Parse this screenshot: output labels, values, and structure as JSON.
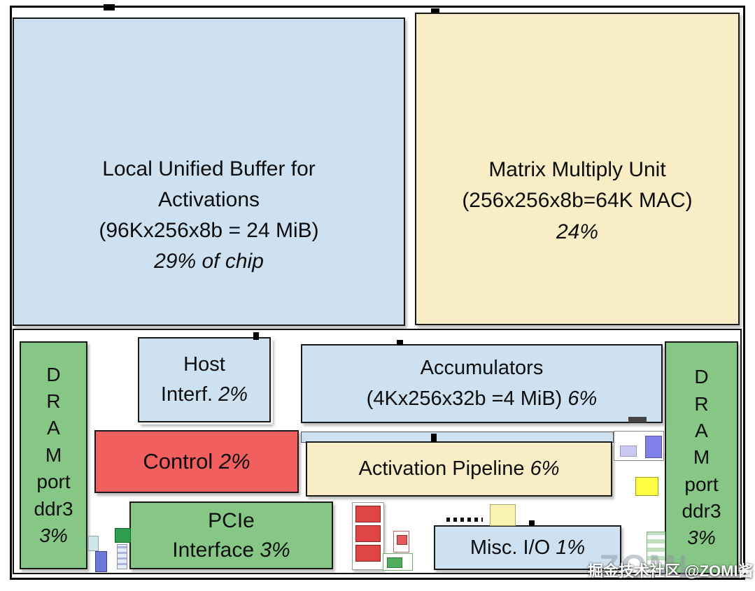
{
  "colors": {
    "light_blue": "#cde1f0",
    "cream": "#f8edc4",
    "green": "#86c786",
    "red": "#f15f5f",
    "border": "#1a1a1a",
    "background": "#ffffff"
  },
  "blocks": {
    "unified_buffer": {
      "line1": "Local Unified Buffer for",
      "line2": "Activations",
      "line3": "(96Kx256x8b = 24 MiB)",
      "pct": "29% of chip",
      "color": "#cde1f0"
    },
    "matrix_multiply": {
      "line1": "Matrix Multiply Unit",
      "line2": "(256x256x8b=64K MAC)",
      "pct": "24%",
      "color": "#f8edc4"
    },
    "dram_left": {
      "letters": [
        "D",
        "R",
        "A",
        "M"
      ],
      "word1": "port",
      "word2": "ddr3",
      "pct": "3%",
      "color": "#86c786"
    },
    "dram_right": {
      "letters": [
        "D",
        "R",
        "A",
        "M"
      ],
      "word1": "port",
      "word2": "ddr3",
      "pct": "3%",
      "color": "#86c786"
    },
    "host_interface": {
      "line1": "Host",
      "line2": "Interf.",
      "pct": "2%",
      "color": "#cde1f0"
    },
    "accumulators": {
      "line1": "Accumulators",
      "line2": "(4Kx256x32b =4 MiB)",
      "pct": "6%",
      "color": "#cde1f0"
    },
    "control": {
      "label": "Control",
      "pct": "2%",
      "color": "#f15f5f"
    },
    "activation_pipeline": {
      "label": "Activation Pipeline",
      "pct": "6%",
      "color": "#f8edc4"
    },
    "pcie": {
      "line1": "PCIe",
      "line2": "Interface",
      "pct": "3%",
      "color": "#86c786"
    },
    "misc_io": {
      "label": "Misc. I/O",
      "pct": "1%",
      "color": "#cde1f0"
    }
  },
  "watermark": {
    "text": "掘金技术社区 @ZOMI酱",
    "ghost": "ZOMI"
  }
}
